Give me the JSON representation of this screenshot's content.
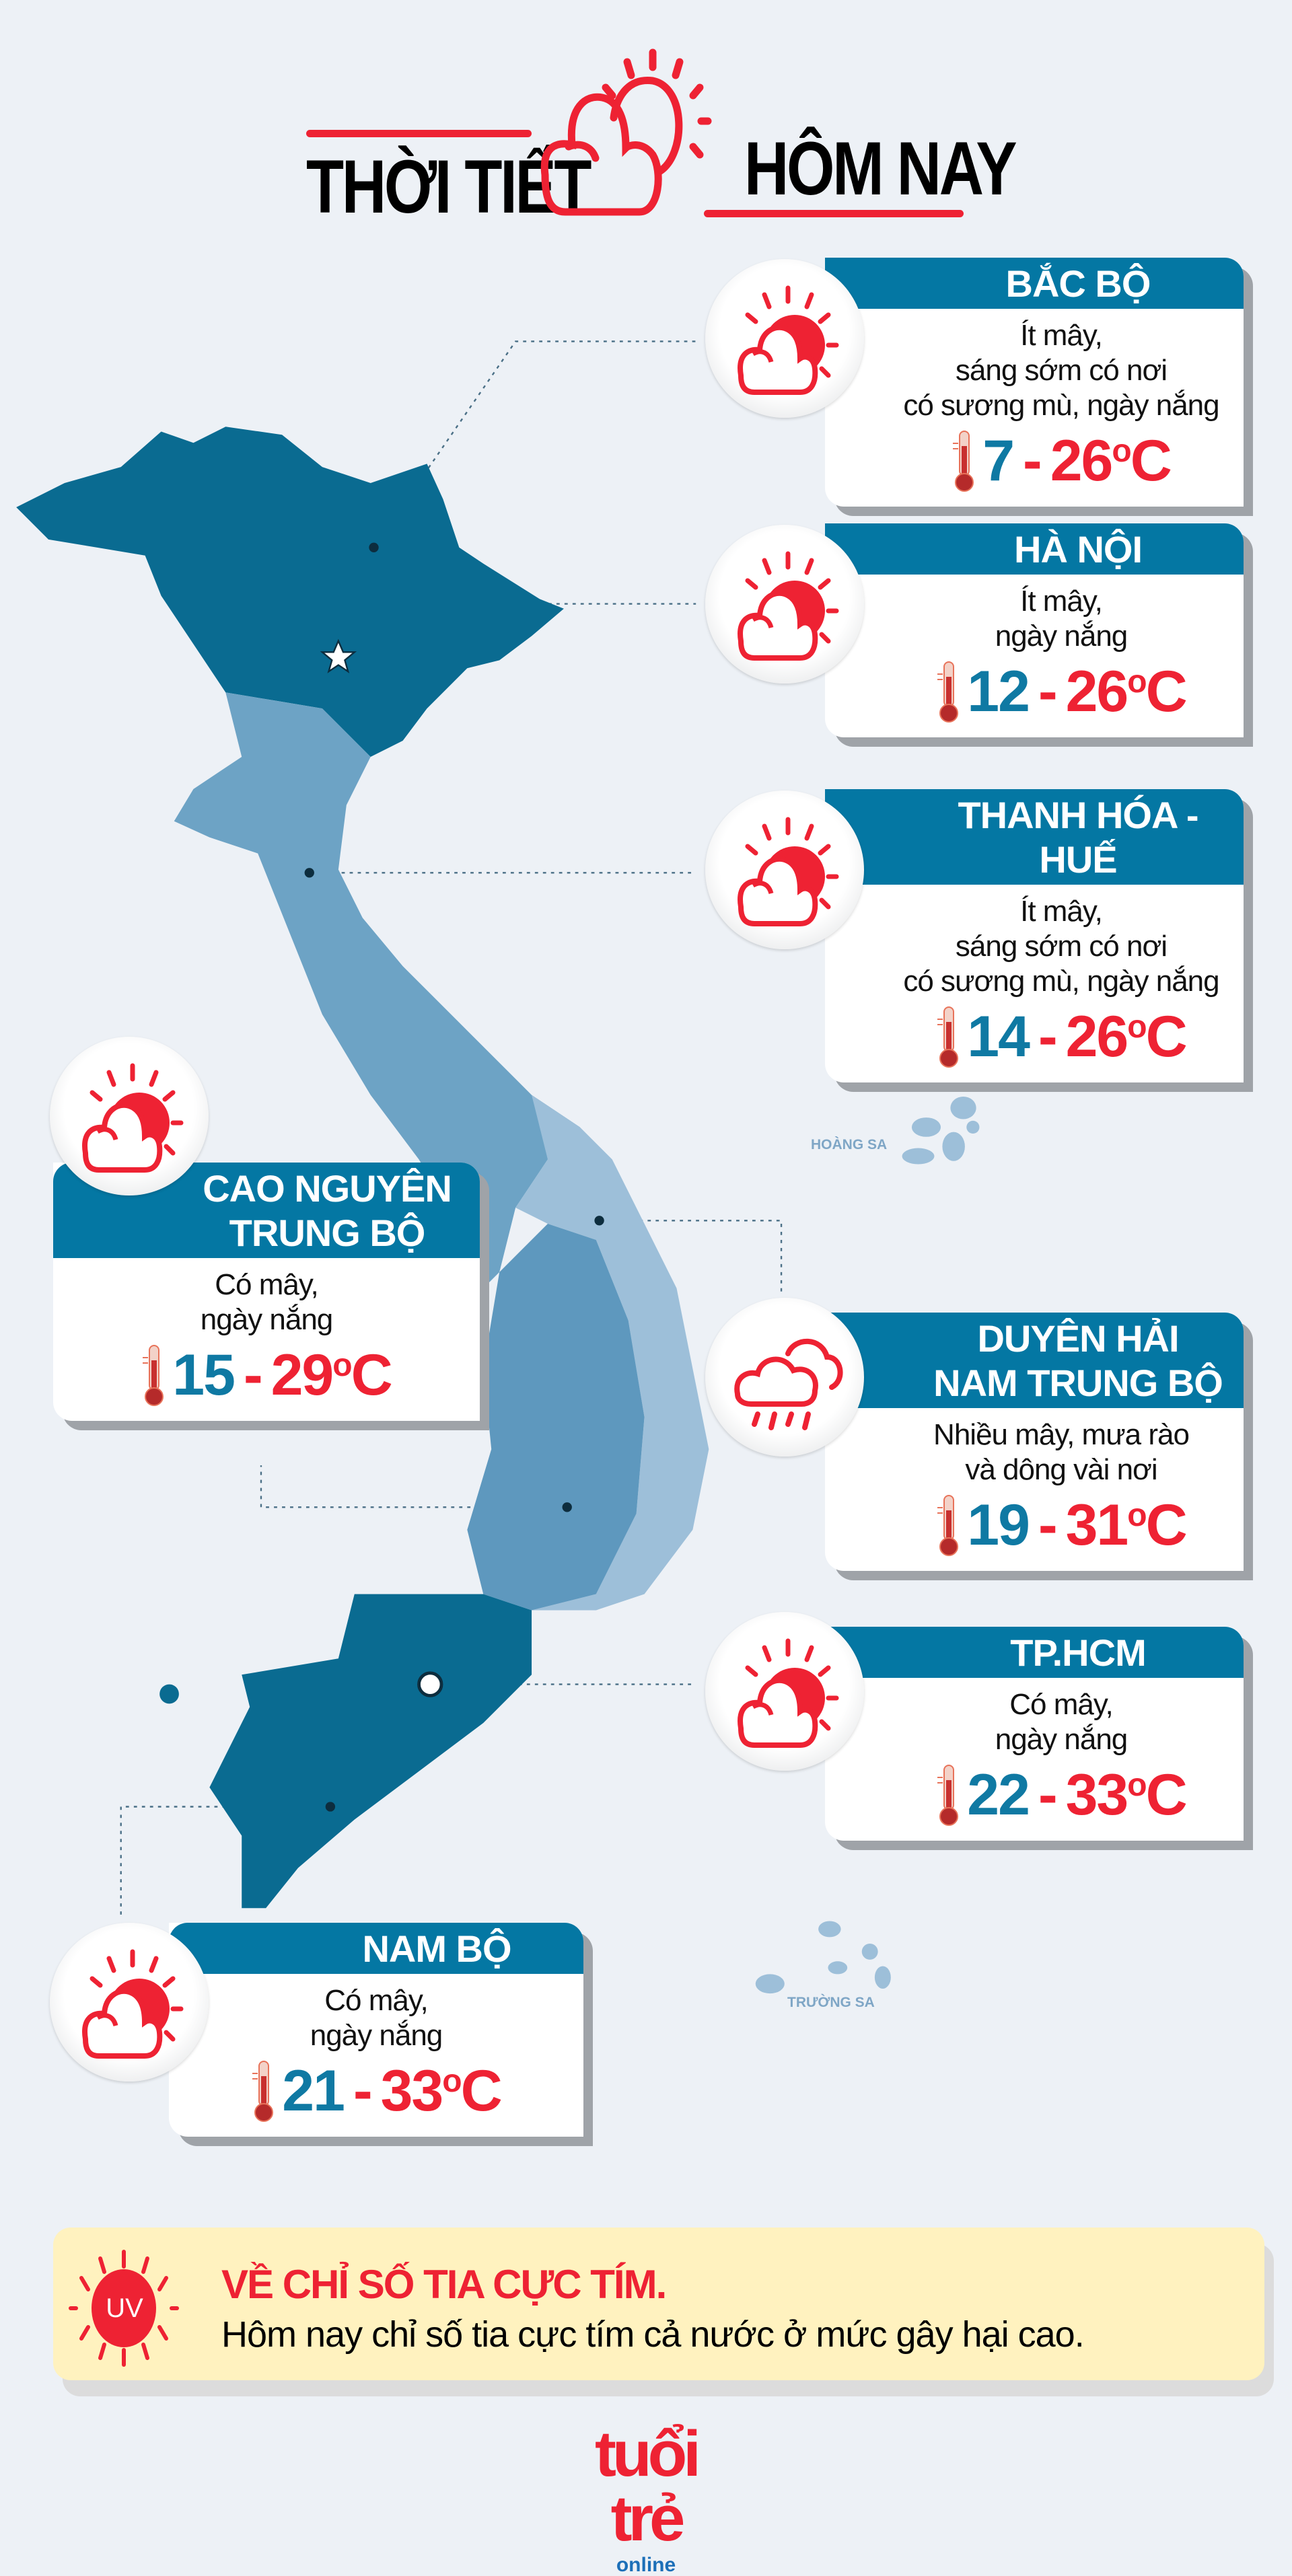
{
  "header": {
    "title_left": "THỜI TIẾT",
    "title_right": "HÔM NAY",
    "icon": "sun-cloud-outline-icon"
  },
  "colors": {
    "accent_red": "#ee2233",
    "header_blue": "#0477a3",
    "low_temp_blue": "#0f79a3",
    "uv_bg": "#fff2bf"
  },
  "cards": [
    {
      "id": "bac-bo",
      "title": [
        "BẮC BỘ"
      ],
      "desc": [
        "Ít mây,",
        "sáng sớm có nơi",
        "có sương mù, ngày nắng"
      ],
      "low": "7",
      "high": "26",
      "unit": "C",
      "sep": "-",
      "icon": "sun-cloud-icon"
    },
    {
      "id": "ha-noi",
      "title": [
        "HÀ NỘI"
      ],
      "desc": [
        "Ít mây,",
        "ngày nắng"
      ],
      "low": "12",
      "high": "26",
      "unit": "C",
      "sep": "-",
      "icon": "sun-cloud-icon"
    },
    {
      "id": "thanh-hoa-hue",
      "title": [
        "THANH HÓA - HUẾ"
      ],
      "desc": [
        "Ít mây,",
        "sáng sớm có nơi",
        "có sương mù, ngày nắng"
      ],
      "low": "14",
      "high": "26",
      "unit": "C",
      "sep": "-",
      "icon": "sun-cloud-icon"
    },
    {
      "id": "cao-nguyen",
      "title": [
        "CAO NGUYÊN",
        "TRUNG BỘ"
      ],
      "desc": [
        "Có mây,",
        "ngày nắng"
      ],
      "low": "15",
      "high": "29",
      "unit": "C",
      "sep": "-",
      "icon": "sun-cloud-icon"
    },
    {
      "id": "duyen-hai",
      "title": [
        "DUYÊN HẢI",
        "NAM TRUNG BỘ"
      ],
      "desc": [
        "Nhiều mây, mưa rào",
        "và dông vài nơi"
      ],
      "low": "19",
      "high": "31",
      "unit": "C",
      "sep": "-",
      "icon": "rain-cloud-icon"
    },
    {
      "id": "tphcm",
      "title": [
        "TP.HCM"
      ],
      "desc": [
        "Có mây,",
        "ngày nắng"
      ],
      "low": "22",
      "high": "33",
      "unit": "C",
      "sep": "-",
      "icon": "sun-cloud-icon"
    },
    {
      "id": "nam-bo",
      "title": [
        "NAM BỘ"
      ],
      "desc": [
        "Có mây,",
        "ngày nắng"
      ],
      "low": "21",
      "high": "33",
      "unit": "C",
      "sep": "-",
      "icon": "sun-cloud-icon"
    }
  ],
  "map": {
    "islands": [
      "HOÀNG SA",
      "TRƯỜNG SA"
    ]
  },
  "uv": {
    "badge": "UV",
    "title": "VỀ CHỈ SỐ TIA CỰC TÍM.",
    "text": "Hôm nay chỉ số tia cực tím cả nước ở mức gây hại cao."
  },
  "logo": {
    "main": "tuổi trẻ",
    "sub": "online"
  }
}
